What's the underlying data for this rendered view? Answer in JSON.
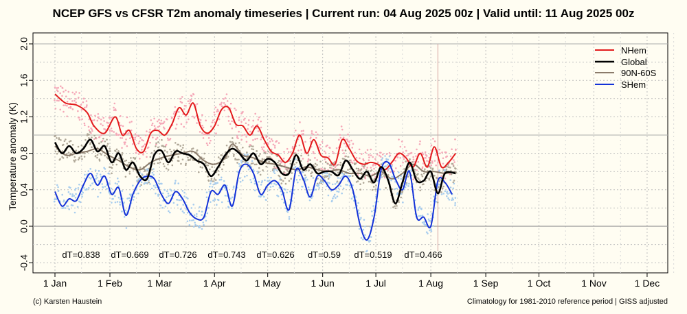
{
  "chart_data": {
    "type": "line",
    "title": "NCEP GFS vs CFSR T2m anomaly timeseries | Current run: 04 Aug 2025 00z | Valid until: 11 Aug 2025 00z",
    "ylabel": "Temperature anomaly (K)",
    "ylim": [
      -0.5,
      2.05
    ],
    "y_ticks": [
      "2.0",
      "1.6",
      "1.2",
      "0.8",
      "0.4",
      "0.0",
      "-0.4"
    ],
    "x_ticks": [
      "1 Jan",
      "1 Feb",
      "1 Mar",
      "1 Apr",
      "1 May",
      "1 Jun",
      "1 Jul",
      "1 Aug",
      "1 Sep",
      "1 Oct",
      "1 Nov",
      "1 Dec",
      "1 Jan"
    ],
    "current_run_day": 216,
    "legend": [
      "NHem",
      "Global",
      "90N-60S",
      "SHem"
    ],
    "legend_placement": "top-right",
    "grid": true,
    "series": [
      {
        "name": "NHem",
        "color": "#e31a1c",
        "dots_color": "#f5a8b8",
        "x": [
          0,
          6,
          12,
          18,
          22,
          28,
          34,
          38,
          42,
          46,
          50,
          54,
          58,
          62,
          66,
          70,
          74,
          78,
          82,
          86,
          90,
          94,
          98,
          102,
          106,
          110,
          114,
          118,
          122,
          126,
          130,
          134,
          138,
          142,
          146,
          150,
          154,
          158,
          162,
          166,
          170,
          174,
          178,
          182,
          186,
          190,
          194,
          198,
          202,
          206,
          210,
          214,
          218,
          222,
          226
        ],
        "y": [
          1.45,
          1.35,
          1.33,
          1.25,
          1.1,
          1.02,
          1.2,
          1.0,
          1.05,
          0.85,
          0.82,
          1.02,
          1.05,
          1.0,
          1.12,
          1.3,
          1.22,
          1.35,
          1.1,
          1.02,
          1.1,
          1.28,
          1.3,
          1.12,
          1.1,
          1.0,
          1.1,
          0.95,
          0.82,
          0.78,
          0.7,
          0.8,
          1.0,
          0.8,
          0.95,
          0.78,
          0.75,
          0.68,
          0.95,
          0.85,
          0.72,
          0.68,
          0.7,
          0.68,
          0.62,
          0.7,
          0.8,
          0.75,
          0.65,
          0.8,
          0.65,
          0.87,
          0.65,
          0.7,
          0.8
        ]
      },
      {
        "name": "Global",
        "color": "#000000",
        "x": [
          0,
          4,
          8,
          12,
          16,
          20,
          24,
          28,
          32,
          36,
          40,
          44,
          48,
          52,
          56,
          60,
          64,
          68,
          72,
          76,
          80,
          84,
          88,
          92,
          96,
          100,
          104,
          108,
          112,
          116,
          120,
          124,
          128,
          132,
          136,
          140,
          144,
          148,
          152,
          156,
          160,
          164,
          168,
          172,
          176,
          180,
          184,
          188,
          192,
          196,
          200,
          204,
          208,
          212,
          216,
          220,
          226
        ],
        "y": [
          0.92,
          0.8,
          0.88,
          0.8,
          0.85,
          0.95,
          0.82,
          0.88,
          0.7,
          0.8,
          0.62,
          0.7,
          0.55,
          0.52,
          0.78,
          0.83,
          0.7,
          0.82,
          0.8,
          0.78,
          0.72,
          0.68,
          0.55,
          0.65,
          0.78,
          0.85,
          0.8,
          0.72,
          0.8,
          0.68,
          0.74,
          0.7,
          0.58,
          0.58,
          0.78,
          0.62,
          0.68,
          0.58,
          0.6,
          0.6,
          0.56,
          0.72,
          0.62,
          0.52,
          0.6,
          0.48,
          0.65,
          0.5,
          0.25,
          0.48,
          0.7,
          0.5,
          0.5,
          0.6,
          0.36,
          0.58,
          0.58
        ]
      },
      {
        "name": "90N-60S",
        "color": "#8b7b6b",
        "x": [
          0,
          6,
          12,
          18,
          24,
          30,
          36,
          42,
          48,
          54,
          60,
          66,
          72,
          78,
          84,
          90,
          96,
          100,
          106,
          112,
          118,
          124,
          130,
          136,
          142,
          148,
          154,
          160,
          166,
          172,
          178,
          184,
          190,
          196,
          202,
          208,
          214,
          220,
          226
        ],
        "y": [
          0.88,
          0.78,
          0.8,
          0.82,
          0.85,
          0.78,
          0.72,
          0.65,
          0.62,
          0.7,
          0.75,
          0.78,
          0.8,
          0.82,
          0.72,
          0.68,
          0.75,
          0.9,
          0.78,
          0.75,
          0.7,
          0.68,
          0.65,
          0.62,
          0.65,
          0.62,
          0.6,
          0.62,
          0.58,
          0.58,
          0.55,
          0.6,
          0.52,
          0.58,
          0.68,
          0.6,
          0.6,
          0.58,
          0.6
        ]
      },
      {
        "name": "SHem",
        "color": "#1432d8",
        "dots_color": "#a8cdee",
        "x": [
          0,
          4,
          8,
          12,
          16,
          20,
          24,
          28,
          32,
          36,
          40,
          44,
          48,
          52,
          56,
          60,
          64,
          68,
          72,
          76,
          80,
          84,
          88,
          92,
          96,
          100,
          104,
          108,
          112,
          116,
          120,
          124,
          128,
          132,
          136,
          140,
          144,
          148,
          152,
          156,
          160,
          164,
          168,
          172,
          176,
          180,
          184,
          188,
          192,
          196,
          200,
          204,
          208,
          212,
          216,
          220,
          224
        ],
        "y": [
          0.38,
          0.22,
          0.3,
          0.28,
          0.45,
          0.58,
          0.45,
          0.55,
          0.35,
          0.42,
          0.12,
          0.35,
          0.5,
          0.55,
          0.52,
          0.35,
          0.25,
          0.38,
          0.3,
          0.15,
          0.08,
          0.1,
          0.38,
          0.35,
          0.45,
          0.22,
          0.6,
          0.68,
          0.58,
          0.35,
          0.45,
          0.5,
          0.4,
          0.18,
          0.62,
          0.52,
          0.32,
          0.55,
          0.5,
          0.4,
          0.45,
          0.55,
          0.4,
          0.02,
          -0.15,
          0.1,
          0.62,
          0.7,
          0.52,
          0.4,
          0.6,
          0.1,
          0.1,
          0.0,
          0.5,
          0.48,
          0.35
        ]
      }
    ],
    "dT_labels": [
      "dT=0.838",
      "dT=0.669",
      "dT=0.726",
      "dT=0.743",
      "dT=0.626",
      "dT=0.59",
      "dT=0.519",
      "dT=0.466"
    ]
  },
  "footer": {
    "left": "(c) Karsten Haustein",
    "right": "Climatology for 1981-2010 reference period | GISS adjusted"
  }
}
